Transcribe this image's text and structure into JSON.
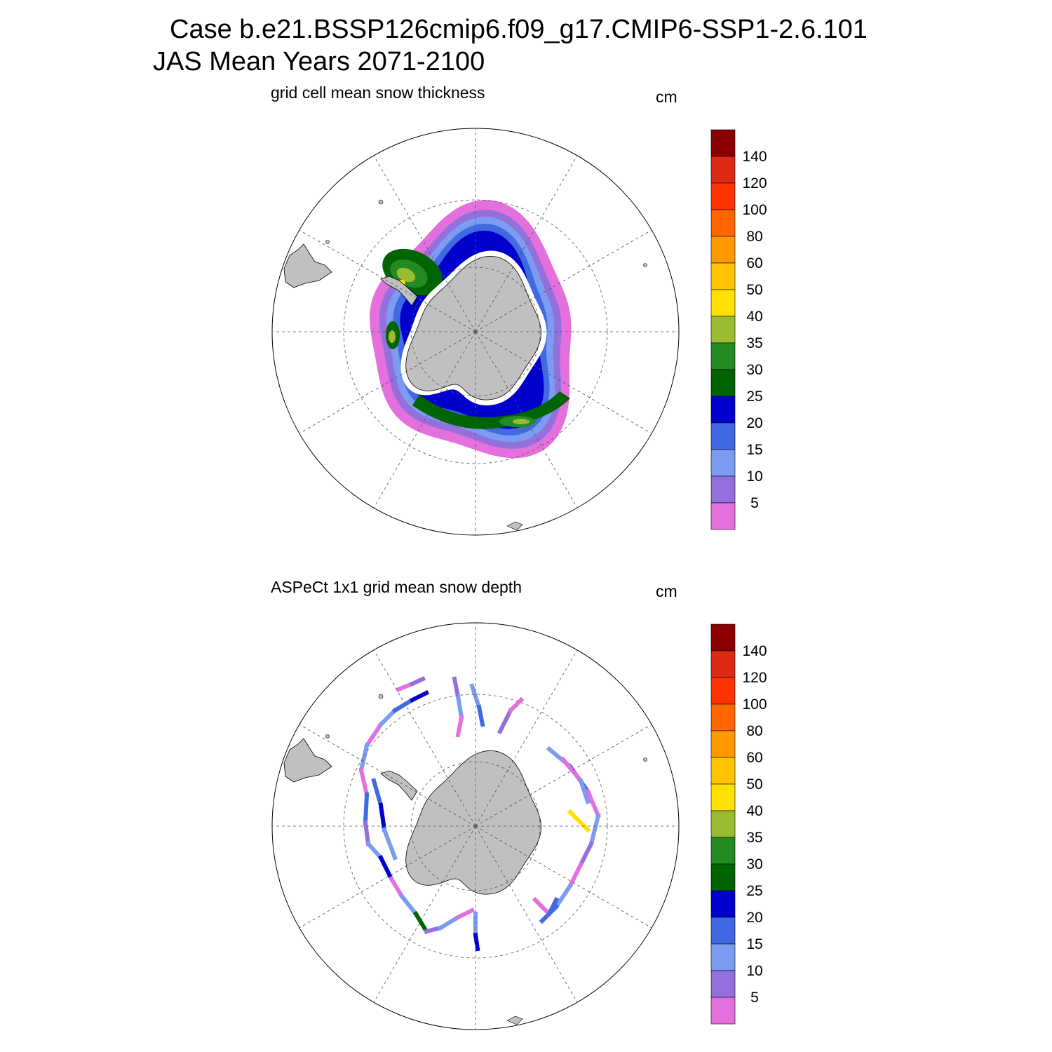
{
  "title": {
    "line1": "Case b.e21.BSSP126cmip6.f09_g17.CMIP6-SSP1-2.6.101",
    "line2": "JAS Mean   Years 2071-2100"
  },
  "panels": [
    {
      "subtitle": "grid cell mean snow thickness",
      "units": "cm",
      "kind": "model"
    },
    {
      "subtitle": "ASPeCt 1x1 grid mean snow depth",
      "units": "cm",
      "kind": "obs"
    }
  ],
  "colorbar": {
    "tick_labels": [
      "5",
      "10",
      "15",
      "20",
      "25",
      "30",
      "35",
      "40",
      "50",
      "60",
      "80",
      "100",
      "120",
      "140"
    ],
    "colors": [
      "#e370dc",
      "#9370db",
      "#7b9cf0",
      "#4169e1",
      "#0000cd",
      "#006400",
      "#228b22",
      "#9abc31",
      "#ffe000",
      "#ffc400",
      "#ff9900",
      "#ff6600",
      "#ff3300",
      "#dc2a15",
      "#8b0000"
    ]
  },
  "map_style": {
    "land": "#c0c0c0",
    "ocean": "#ffffff",
    "grid": "#555555"
  }
}
